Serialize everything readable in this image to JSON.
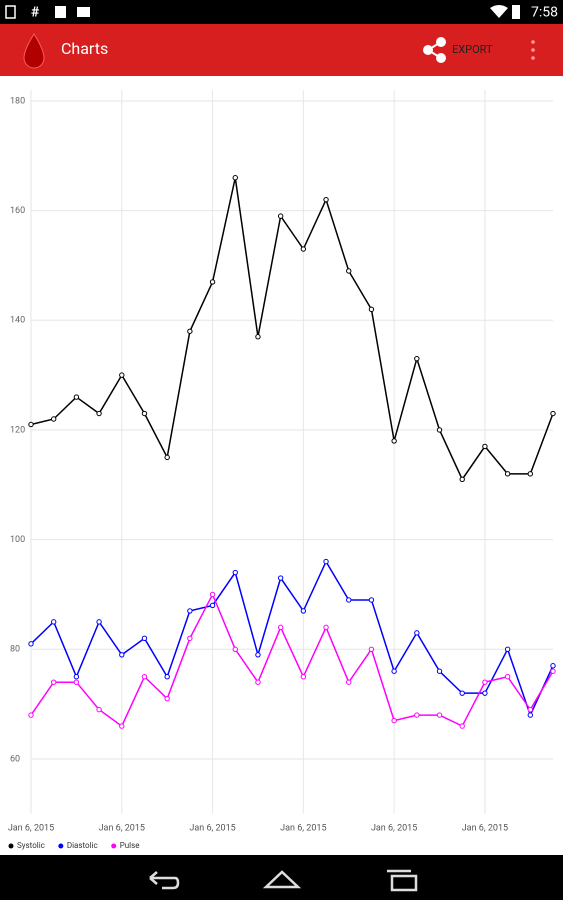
{
  "status_bar": {
    "time": "7:58"
  },
  "app_bar": {
    "title": "Charts",
    "action": "EXPORT"
  },
  "chart_data": {
    "type": "line",
    "categories": [
      "Jan 6, 2015",
      null,
      null,
      null,
      "Jan 6, 2015",
      null,
      null,
      null,
      "Jan 6, 2015",
      null,
      null,
      null,
      "Jan 6, 2015",
      null,
      null,
      null,
      "Jan 6, 2015",
      null,
      null,
      null,
      "Jan 6, 2015",
      null,
      null,
      null
    ],
    "series": [
      {
        "name": "Systolic",
        "color": "#000000",
        "values": [
          121,
          122,
          126,
          123,
          130,
          123,
          115,
          138,
          147,
          166,
          137,
          159,
          153,
          162,
          149,
          142,
          118,
          133,
          120,
          111,
          117,
          112,
          112,
          123
        ]
      },
      {
        "name": "Diastolic",
        "color": "#0000ff",
        "values": [
          81,
          85,
          75,
          85,
          79,
          82,
          75,
          87,
          88,
          94,
          79,
          93,
          87,
          96,
          89,
          89,
          76,
          83,
          76,
          72,
          72,
          80,
          68,
          77
        ]
      },
      {
        "name": "Pulse",
        "color": "#ff00ff",
        "values": [
          68,
          74,
          74,
          69,
          66,
          75,
          71,
          82,
          90,
          80,
          74,
          84,
          75,
          84,
          74,
          80,
          67,
          68,
          68,
          66,
          74,
          75,
          69,
          76
        ]
      }
    ],
    "ylim": [
      50,
      182
    ],
    "yticks": [
      60,
      80,
      100,
      120,
      140,
      160,
      180
    ],
    "grid": true,
    "legend": "bottom-left"
  }
}
